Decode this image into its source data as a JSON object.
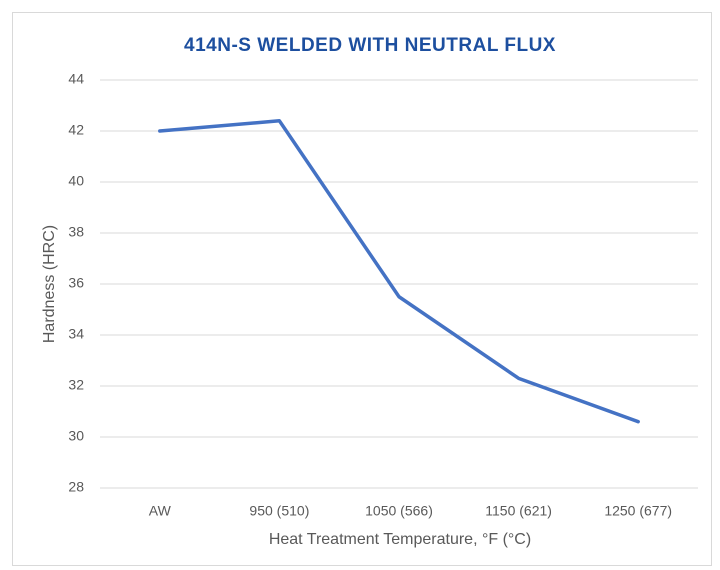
{
  "chart_data": {
    "type": "line",
    "title": "414N-S WELDED WITH NEUTRAL FLUX",
    "x_label": "Heat Treatment Temperature, °F (°C)",
    "y_label": "Hardness (HRC)",
    "categories": [
      "AW",
      "950 (510)",
      "1050 (566)",
      "1150 (621)",
      "1250 (677)"
    ],
    "series": [
      {
        "color": "#4472c4",
        "values": [
          42.0,
          42.4,
          35.5,
          32.3,
          30.6
        ]
      }
    ],
    "ylim": [
      28,
      44
    ],
    "yticks": [
      28,
      30,
      32,
      34,
      36,
      38,
      40,
      42,
      44
    ],
    "grid": true
  }
}
